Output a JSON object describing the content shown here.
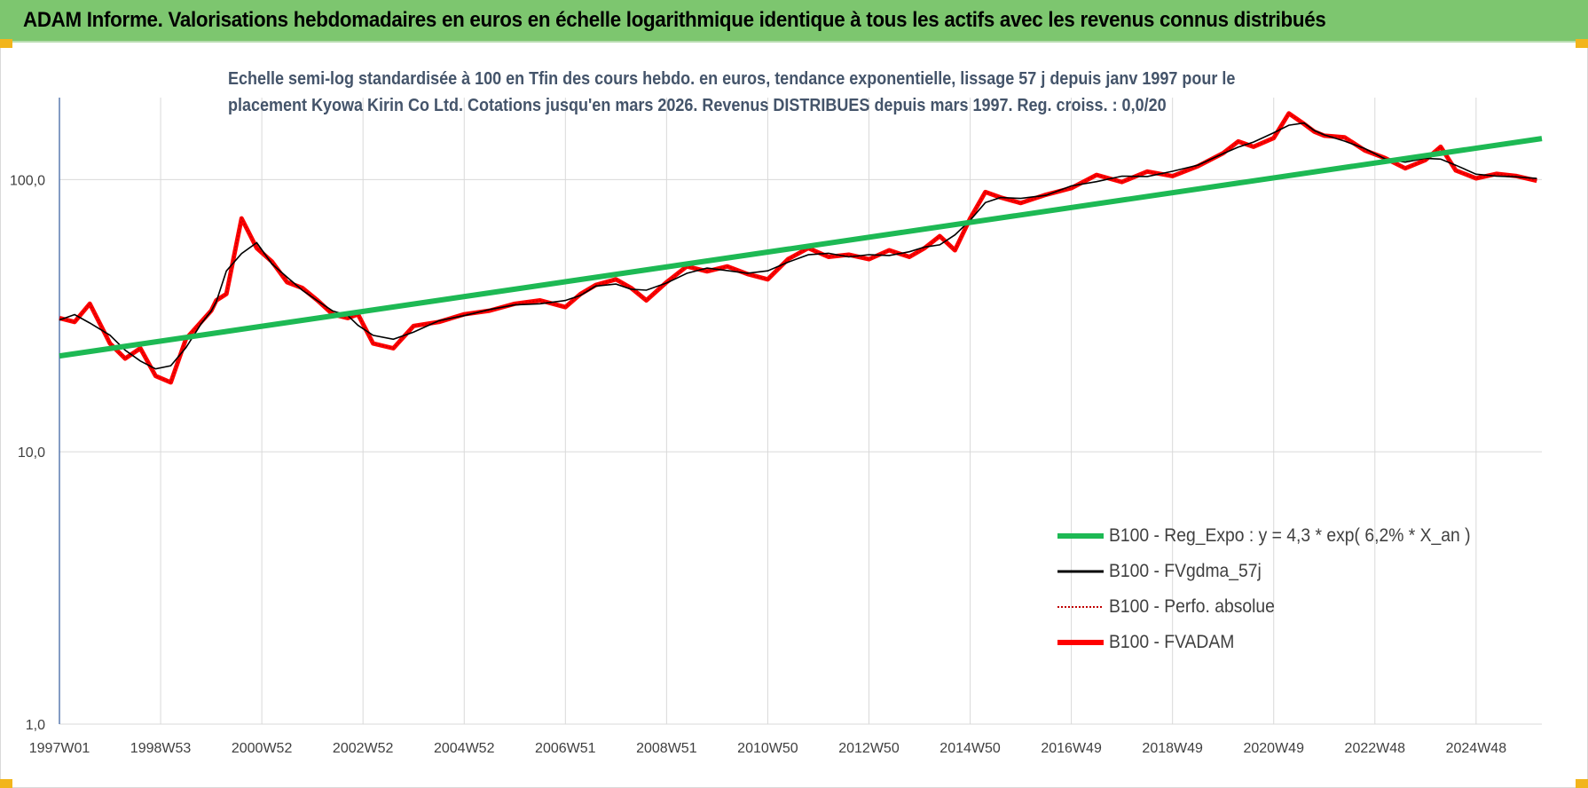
{
  "header": {
    "title": "ADAM Informe. Valorisations hebdomadaires en euros en échelle logarithmique identique à tous les actifs avec les revenus connus distribués"
  },
  "colors": {
    "banner": "#7dc66f",
    "corner": "#f2b51c",
    "title_text": "#44546a",
    "reg_expo": "#1db954",
    "fvgdma": "#000000",
    "perfo": "#c00000",
    "fvadam": "#ff0000"
  },
  "chart_data": {
    "type": "line",
    "title_lines": [
      "Echelle semi-log standardisée à 100 en Tfin des cours hebdo. en euros, tendance exponentielle, lissage 57 j depuis janv 1997 pour le",
      "placement Kyowa Kirin Co Ltd. Cotations jusqu'en mars 2026. Revenus DISTRIBUES depuis mars 1997. Reg. croiss. : 0,0/20"
    ],
    "yscale": "log",
    "ylim": [
      1,
      200
    ],
    "yticks": [
      {
        "value": 100,
        "label": "100,0"
      },
      {
        "value": 10,
        "label": "10,0"
      },
      {
        "value": 1,
        "label": "1,0"
      }
    ],
    "xlim": [
      1997.0,
      2026.3
    ],
    "xticks": [
      {
        "value": 1997.0,
        "label": "1997W01"
      },
      {
        "value": 1999.0,
        "label": "1998W53"
      },
      {
        "value": 2001.0,
        "label": "2000W52"
      },
      {
        "value": 2003.0,
        "label": "2002W52"
      },
      {
        "value": 2005.0,
        "label": "2004W52"
      },
      {
        "value": 2007.0,
        "label": "2006W51"
      },
      {
        "value": 2009.0,
        "label": "2008W51"
      },
      {
        "value": 2011.0,
        "label": "2010W50"
      },
      {
        "value": 2013.0,
        "label": "2012W50"
      },
      {
        "value": 2015.0,
        "label": "2014W50"
      },
      {
        "value": 2017.0,
        "label": "2016W49"
      },
      {
        "value": 2019.0,
        "label": "2018W49"
      },
      {
        "value": 2021.0,
        "label": "2020W49"
      },
      {
        "value": 2023.0,
        "label": "2022W48"
      },
      {
        "value": 2025.0,
        "label": "2024W48"
      }
    ],
    "grid": true,
    "legend_position": "bottom-right",
    "series": [
      {
        "name": "B100 - Reg_Expo : y = 4,3 * exp( 6,2% *  X_an )",
        "key": "reg_expo",
        "x": [
          1997.0,
          2026.3
        ],
        "y": [
          22.5,
          141.5
        ]
      },
      {
        "name": "B100 - FVgdma_57j",
        "key": "fvgdma"
      },
      {
        "name": "B100 - Perfo. absolue",
        "key": "perfo"
      },
      {
        "name": "B100 - FVADAM",
        "key": "fvadam",
        "x": [
          1997.0,
          1997.3,
          1997.6,
          1998.0,
          1998.3,
          1998.6,
          1998.9,
          1999.2,
          1999.5,
          1999.8,
          2000.0,
          2000.1,
          2000.3,
          2000.6,
          2000.9,
          2001.2,
          2001.5,
          2001.8,
          2002.1,
          2002.4,
          2002.7,
          2002.9,
          2003.2,
          2003.6,
          2004.0,
          2004.5,
          2005.0,
          2005.5,
          2006.0,
          2006.5,
          2007.0,
          2007.3,
          2007.6,
          2008.0,
          2008.3,
          2008.6,
          2009.0,
          2009.4,
          2009.8,
          2010.2,
          2010.6,
          2011.0,
          2011.4,
          2011.8,
          2012.2,
          2012.6,
          2013.0,
          2013.4,
          2013.8,
          2014.1,
          2014.4,
          2014.7,
          2015.0,
          2015.3,
          2015.6,
          2016.0,
          2016.5,
          2017.0,
          2017.5,
          2018.0,
          2018.5,
          2019.0,
          2019.5,
          2020.0,
          2020.3,
          2020.6,
          2021.0,
          2021.3,
          2021.6,
          2021.8,
          2022.0,
          2022.4,
          2022.8,
          2023.2,
          2023.6,
          2024.0,
          2024.3,
          2024.6,
          2025.0,
          2025.4,
          2025.8,
          2026.2
        ],
        "y": [
          31,
          30,
          35,
          25,
          22,
          24,
          19,
          18,
          26,
          30,
          33,
          36,
          38,
          72,
          56,
          50,
          42,
          40,
          36,
          32,
          31,
          32,
          25,
          24,
          29,
          30,
          32,
          33,
          35,
          36,
          34,
          38,
          41,
          43,
          40,
          36,
          42,
          48,
          46,
          48,
          45,
          43,
          51,
          56,
          52,
          53,
          51,
          55,
          52,
          56,
          62,
          55,
          72,
          90,
          86,
          82,
          88,
          93,
          104,
          98,
          107,
          103,
          112,
          125,
          138,
          132,
          142,
          175,
          160,
          150,
          145,
          143,
          128,
          120,
          110,
          118,
          132,
          108,
          101,
          105,
          103,
          99
        ]
      }
    ]
  }
}
